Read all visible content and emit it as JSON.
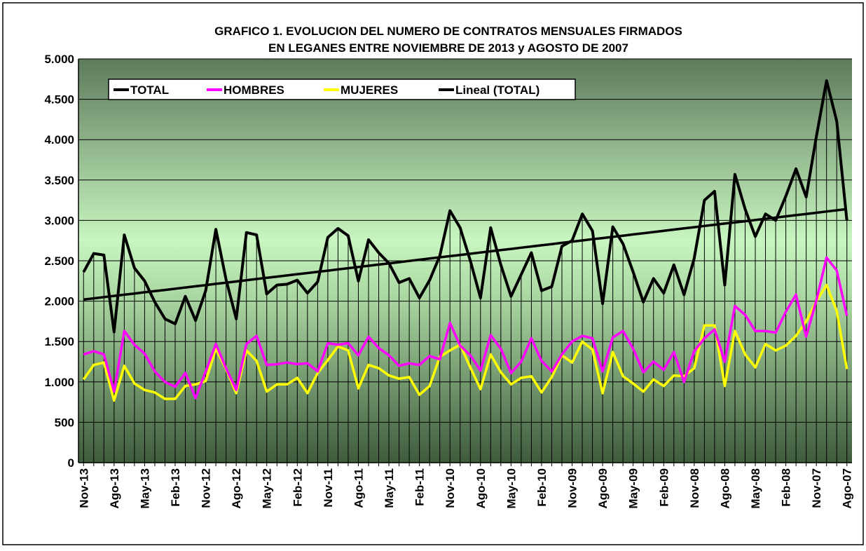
{
  "chart_data": {
    "type": "line",
    "title": [
      "GRAFICO 1. EVOLUCION DEL NUMERO DE CONTRATOS MENSUALES FIRMADOS",
      "EN LEGANES ENTRE NOVIEMBRE DE 2013 y AGOSTO DE 2007"
    ],
    "categories": [
      "Nov-13",
      null,
      null,
      "Ago-13",
      null,
      null,
      "May-13",
      null,
      null,
      "Feb-13",
      null,
      null,
      "Nov-12",
      null,
      null,
      "Ago-12",
      null,
      null,
      "May-12",
      null,
      null,
      "Feb-12",
      null,
      null,
      "Nov-11",
      null,
      null,
      "Ago-11",
      null,
      null,
      "May-11",
      null,
      null,
      "Feb-11",
      null,
      null,
      "Nov-10",
      null,
      null,
      "Ago-10",
      null,
      null,
      "May-10",
      null,
      null,
      "Feb-10",
      null,
      null,
      "Nov-09",
      null,
      null,
      "Ago-09",
      null,
      null,
      "May-09",
      null,
      null,
      "Feb-09",
      null,
      null,
      "Nov-08",
      null,
      null,
      "Ago-08",
      null,
      null,
      "May-08",
      null,
      null,
      "Feb-08",
      null,
      null,
      "Nov-07",
      null,
      null,
      "Ago-07"
    ],
    "series": [
      {
        "name": "TOTAL",
        "color": "#000000",
        "values": [
          2360,
          2590,
          2570,
          1620,
          2820,
          2410,
          2250,
          1990,
          1780,
          1720,
          2060,
          1760,
          2130,
          2890,
          2270,
          1780,
          2850,
          2820,
          2090,
          2200,
          2210,
          2260,
          2100,
          2240,
          2790,
          2900,
          2810,
          2250,
          2760,
          2600,
          2470,
          2230,
          2280,
          2040,
          2260,
          2560,
          3120,
          2910,
          2500,
          2040,
          2910,
          2450,
          2060,
          2330,
          2600,
          2130,
          2180,
          2680,
          2750,
          3080,
          2870,
          1970,
          2920,
          2710,
          2360,
          1990,
          2280,
          2100,
          2450,
          2080,
          2530,
          3250,
          3360,
          2200,
          3570,
          3140,
          2800,
          3080,
          3000,
          3300,
          3640,
          3290,
          4040,
          4730,
          4230,
          3000
        ]
      },
      {
        "name": "HOMBRES",
        "color": "#ff00ff",
        "values": [
          1340,
          1380,
          1340,
          880,
          1630,
          1460,
          1350,
          1130,
          1000,
          940,
          1110,
          800,
          1130,
          1470,
          1170,
          900,
          1470,
          1570,
          1210,
          1220,
          1240,
          1220,
          1230,
          1130,
          1480,
          1460,
          1480,
          1330,
          1560,
          1420,
          1330,
          1200,
          1230,
          1210,
          1320,
          1280,
          1730,
          1450,
          1330,
          1140,
          1580,
          1410,
          1110,
          1250,
          1540,
          1260,
          1130,
          1340,
          1500,
          1570,
          1540,
          1130,
          1550,
          1630,
          1410,
          1120,
          1250,
          1150,
          1370,
          1000,
          1380,
          1540,
          1650,
          1250,
          1940,
          1830,
          1630,
          1630,
          1610,
          1870,
          2080,
          1560,
          2010,
          2540,
          2380,
          1820
        ]
      },
      {
        "name": "MUJERES",
        "color": "#ffff00",
        "values": [
          1030,
          1210,
          1240,
          770,
          1200,
          980,
          900,
          870,
          790,
          790,
          950,
          970,
          1010,
          1410,
          1160,
          860,
          1390,
          1260,
          880,
          970,
          970,
          1050,
          860,
          1110,
          1270,
          1440,
          1390,
          920,
          1210,
          1170,
          1080,
          1040,
          1060,
          840,
          950,
          1310,
          1390,
          1460,
          1180,
          910,
          1340,
          1120,
          970,
          1050,
          1070,
          870,
          1060,
          1330,
          1240,
          1500,
          1400,
          860,
          1370,
          1070,
          980,
          880,
          1030,
          950,
          1080,
          1070,
          1170,
          1700,
          1700,
          950,
          1630,
          1340,
          1180,
          1470,
          1390,
          1450,
          1570,
          1750,
          2000,
          2200,
          1880,
          1160
        ]
      },
      {
        "name": "Lineal (TOTAL)",
        "color": "#000000",
        "values": [
          2020,
          2035,
          2050,
          2065,
          2080,
          2095,
          2110,
          2125,
          2139,
          2154,
          2169,
          2184,
          2199,
          2214,
          2229,
          2244,
          2259,
          2274,
          2289,
          2304,
          2319,
          2334,
          2348,
          2363,
          2378,
          2393,
          2408,
          2423,
          2438,
          2453,
          2468,
          2483,
          2498,
          2513,
          2528,
          2543,
          2557,
          2572,
          2587,
          2602,
          2617,
          2632,
          2647,
          2662,
          2677,
          2692,
          2707,
          2722,
          2737,
          2752,
          2767,
          2781,
          2796,
          2811,
          2826,
          2841,
          2856,
          2871,
          2886,
          2901,
          2916,
          2931,
          2946,
          2961,
          2976,
          2990,
          3005,
          3020,
          3035,
          3050,
          3065,
          3080,
          3095,
          3110,
          3125,
          3140
        ]
      }
    ],
    "ylim": [
      0,
      5000
    ],
    "yticks": [
      0,
      500,
      {
        "value": 1000,
        "label": "1.000"
      },
      {
        "value": 1500,
        "label": "1.500"
      },
      {
        "value": 2000,
        "label": "2.000"
      },
      {
        "value": 2500,
        "label": "2.500"
      },
      {
        "value": 3000,
        "label": "3.000"
      },
      {
        "value": 3500,
        "label": "3.500"
      },
      {
        "value": 4000,
        "label": "4.000"
      },
      {
        "value": 4500,
        "label": "4.500"
      },
      {
        "value": 5000,
        "label": "5.000"
      }
    ],
    "grid": true,
    "legend": "top-left"
  }
}
